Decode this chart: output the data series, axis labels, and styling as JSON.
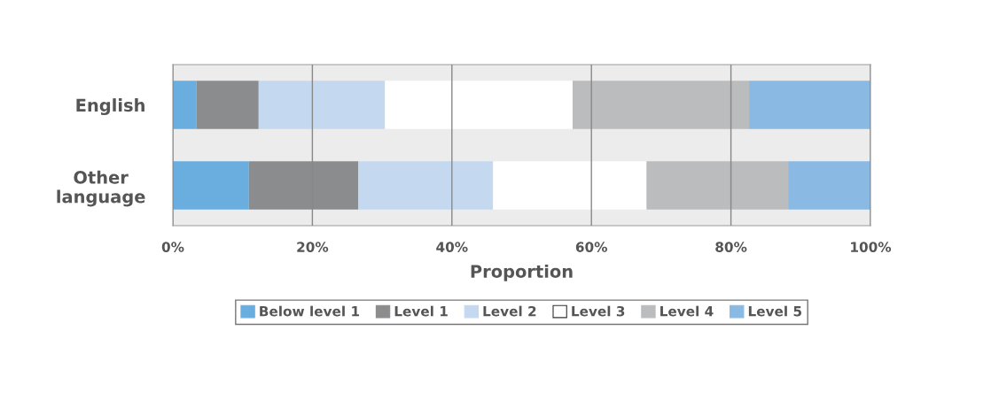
{
  "chart_data": {
    "type": "bar",
    "orientation": "horizontal",
    "stacked": true,
    "xlabel": "Proportion",
    "categories": [
      "English",
      "Other language"
    ],
    "series": [
      {
        "name": "Below level 1",
        "color": "#6aaee0",
        "values": [
          3.4,
          10.9
        ]
      },
      {
        "name": "Level 1",
        "color": "#8b8c8e",
        "values": [
          8.9,
          15.7
        ]
      },
      {
        "name": "Level 2",
        "color": "#c4d9f0",
        "values": [
          18.1,
          19.3
        ]
      },
      {
        "name": "Level 3",
        "color": "#ffffff",
        "values": [
          26.9,
          22.0
        ]
      },
      {
        "name": "Level 4",
        "color": "#bbbcbe",
        "values": [
          25.3,
          20.3
        ]
      },
      {
        "name": "Level 5",
        "color": "#8ab9e3",
        "values": [
          17.4,
          11.8
        ]
      }
    ],
    "xlim": [
      0,
      100
    ],
    "xticks": [
      {
        "value": 0,
        "label": "0%"
      },
      {
        "value": 20,
        "label": "20%"
      },
      {
        "value": 40,
        "label": "40%"
      },
      {
        "value": 60,
        "label": "60%"
      },
      {
        "value": 80,
        "label": "80%"
      },
      {
        "value": 100,
        "label": "100%"
      }
    ],
    "grid": "x",
    "legend": "bottom"
  }
}
